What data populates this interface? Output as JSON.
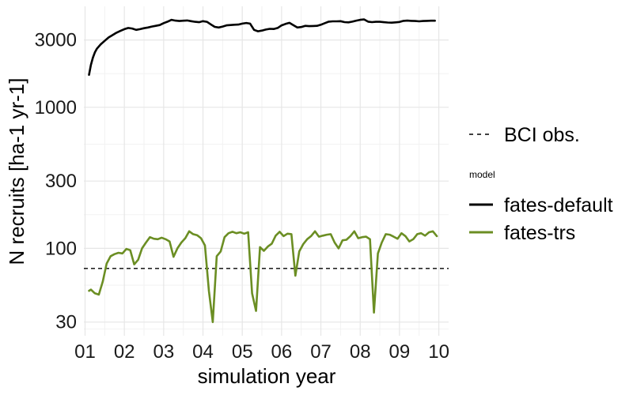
{
  "chart_data": {
    "type": "line",
    "xlabel": "simulation year",
    "ylabel": "N recruits [ha-1 yr-1]",
    "y_scale": "log",
    "ylim": [
      24,
      5200
    ],
    "xlim": [
      0.97,
      10.25
    ],
    "x_ticks": [
      {
        "value": 1,
        "label": "01"
      },
      {
        "value": 2,
        "label": "02"
      },
      {
        "value": 3,
        "label": "03"
      },
      {
        "value": 4,
        "label": "04"
      },
      {
        "value": 5,
        "label": "05"
      },
      {
        "value": 6,
        "label": "06"
      },
      {
        "value": 7,
        "label": "07"
      },
      {
        "value": 8,
        "label": "08"
      },
      {
        "value": 9,
        "label": "09"
      },
      {
        "value": 10,
        "label": "10"
      }
    ],
    "y_ticks": [
      {
        "value": 30,
        "label": "30"
      },
      {
        "value": 100,
        "label": "100"
      },
      {
        "value": 300,
        "label": "300"
      },
      {
        "value": 1000,
        "label": "1000"
      },
      {
        "value": 3000,
        "label": "3000"
      }
    ],
    "grid": true,
    "legend_position": "right",
    "legend_title": "model",
    "reference_line": {
      "name": "BCI obs.",
      "y": 72,
      "style": "dashed",
      "color": "#000000"
    },
    "series": [
      {
        "name": "fates-default",
        "color": "#000000",
        "points": [
          [
            1.1,
            1700
          ],
          [
            1.15,
            2000
          ],
          [
            1.2,
            2250
          ],
          [
            1.25,
            2450
          ],
          [
            1.3,
            2600
          ],
          [
            1.4,
            2800
          ],
          [
            1.5,
            2960
          ],
          [
            1.6,
            3130
          ],
          [
            1.7,
            3250
          ],
          [
            1.8,
            3380
          ],
          [
            1.9,
            3480
          ],
          [
            2.0,
            3580
          ],
          [
            2.1,
            3650
          ],
          [
            2.2,
            3620
          ],
          [
            2.3,
            3540
          ],
          [
            2.4,
            3580
          ],
          [
            2.5,
            3640
          ],
          [
            2.6,
            3680
          ],
          [
            2.7,
            3740
          ],
          [
            2.8,
            3780
          ],
          [
            2.9,
            3830
          ],
          [
            3.0,
            3950
          ],
          [
            3.1,
            4050
          ],
          [
            3.2,
            4170
          ],
          [
            3.3,
            4120
          ],
          [
            3.4,
            4090
          ],
          [
            3.5,
            4110
          ],
          [
            3.6,
            4130
          ],
          [
            3.7,
            4080
          ],
          [
            3.8,
            4040
          ],
          [
            3.9,
            4010
          ],
          [
            4.0,
            4080
          ],
          [
            4.1,
            4040
          ],
          [
            4.2,
            3870
          ],
          [
            4.3,
            3720
          ],
          [
            4.4,
            3680
          ],
          [
            4.5,
            3740
          ],
          [
            4.6,
            3810
          ],
          [
            4.7,
            3830
          ],
          [
            4.8,
            3850
          ],
          [
            4.9,
            3860
          ],
          [
            5.0,
            3920
          ],
          [
            5.1,
            3960
          ],
          [
            5.2,
            3920
          ],
          [
            5.3,
            3540
          ],
          [
            5.4,
            3460
          ],
          [
            5.5,
            3500
          ],
          [
            5.6,
            3560
          ],
          [
            5.7,
            3600
          ],
          [
            5.8,
            3590
          ],
          [
            5.9,
            3650
          ],
          [
            6.0,
            3810
          ],
          [
            6.1,
            3900
          ],
          [
            6.2,
            3970
          ],
          [
            6.3,
            3820
          ],
          [
            6.4,
            3680
          ],
          [
            6.5,
            3710
          ],
          [
            6.6,
            3780
          ],
          [
            6.7,
            3760
          ],
          [
            6.8,
            3770
          ],
          [
            6.9,
            3780
          ],
          [
            7.0,
            3850
          ],
          [
            7.1,
            3950
          ],
          [
            7.2,
            4050
          ],
          [
            7.3,
            4070
          ],
          [
            7.4,
            4070
          ],
          [
            7.5,
            4080
          ],
          [
            7.6,
            4020
          ],
          [
            7.7,
            4000
          ],
          [
            7.8,
            4050
          ],
          [
            7.9,
            4120
          ],
          [
            8.0,
            4170
          ],
          [
            8.1,
            4200
          ],
          [
            8.2,
            4050
          ],
          [
            8.3,
            4020
          ],
          [
            8.4,
            4040
          ],
          [
            8.5,
            4040
          ],
          [
            8.6,
            4010
          ],
          [
            8.7,
            3990
          ],
          [
            8.8,
            3980
          ],
          [
            8.9,
            4000
          ],
          [
            9.0,
            4030
          ],
          [
            9.1,
            4100
          ],
          [
            9.2,
            4120
          ],
          [
            9.3,
            4100
          ],
          [
            9.4,
            4090
          ],
          [
            9.5,
            4070
          ],
          [
            9.6,
            4090
          ],
          [
            9.7,
            4100
          ],
          [
            9.8,
            4110
          ],
          [
            9.9,
            4110
          ]
        ]
      },
      {
        "name": "fates-trs",
        "color": "#6b8e23",
        "points": [
          [
            1.1,
            50
          ],
          [
            1.15,
            51
          ],
          [
            1.25,
            48
          ],
          [
            1.35,
            47
          ],
          [
            1.45,
            58
          ],
          [
            1.55,
            78
          ],
          [
            1.65,
            88
          ],
          [
            1.75,
            91
          ],
          [
            1.85,
            93
          ],
          [
            1.95,
            92
          ],
          [
            2.05,
            99
          ],
          [
            2.15,
            97
          ],
          [
            2.25,
            77
          ],
          [
            2.35,
            83
          ],
          [
            2.45,
            100
          ],
          [
            2.55,
            110
          ],
          [
            2.65,
            120
          ],
          [
            2.75,
            117
          ],
          [
            2.85,
            116
          ],
          [
            2.95,
            119
          ],
          [
            3.05,
            116
          ],
          [
            3.15,
            112
          ],
          [
            3.25,
            87
          ],
          [
            3.35,
            100
          ],
          [
            3.45,
            110
          ],
          [
            3.55,
            118
          ],
          [
            3.65,
            132
          ],
          [
            3.75,
            126
          ],
          [
            3.85,
            124
          ],
          [
            3.95,
            118
          ],
          [
            4.05,
            105
          ],
          [
            4.15,
            50
          ],
          [
            4.25,
            30
          ],
          [
            4.35,
            88
          ],
          [
            4.45,
            95
          ],
          [
            4.55,
            120
          ],
          [
            4.65,
            128
          ],
          [
            4.75,
            131
          ],
          [
            4.85,
            128
          ],
          [
            4.95,
            130
          ],
          [
            5.05,
            127
          ],
          [
            5.15,
            130
          ],
          [
            5.25,
            48
          ],
          [
            5.35,
            36
          ],
          [
            5.45,
            102
          ],
          [
            5.55,
            96
          ],
          [
            5.65,
            103
          ],
          [
            5.75,
            108
          ],
          [
            5.85,
            123
          ],
          [
            5.95,
            131
          ],
          [
            6.05,
            122
          ],
          [
            6.15,
            127
          ],
          [
            6.25,
            126
          ],
          [
            6.35,
            64
          ],
          [
            6.45,
            95
          ],
          [
            6.55,
            107
          ],
          [
            6.65,
            116
          ],
          [
            6.75,
            122
          ],
          [
            6.85,
            132
          ],
          [
            6.95,
            121
          ],
          [
            7.05,
            123
          ],
          [
            7.15,
            125
          ],
          [
            7.25,
            126
          ],
          [
            7.35,
            110
          ],
          [
            7.45,
            100
          ],
          [
            7.55,
            114
          ],
          [
            7.65,
            115
          ],
          [
            7.75,
            122
          ],
          [
            7.85,
            132
          ],
          [
            7.95,
            118
          ],
          [
            8.05,
            120
          ],
          [
            8.15,
            121
          ],
          [
            8.25,
            116
          ],
          [
            8.35,
            35
          ],
          [
            8.45,
            92
          ],
          [
            8.55,
            110
          ],
          [
            8.65,
            126
          ],
          [
            8.75,
            125
          ],
          [
            8.85,
            121
          ],
          [
            8.95,
            117
          ],
          [
            9.05,
            128
          ],
          [
            9.15,
            122
          ],
          [
            9.25,
            112
          ],
          [
            9.35,
            116
          ],
          [
            9.45,
            126
          ],
          [
            9.55,
            128
          ],
          [
            9.65,
            123
          ],
          [
            9.75,
            130
          ],
          [
            9.85,
            132
          ],
          [
            9.95,
            122
          ]
        ]
      }
    ]
  }
}
